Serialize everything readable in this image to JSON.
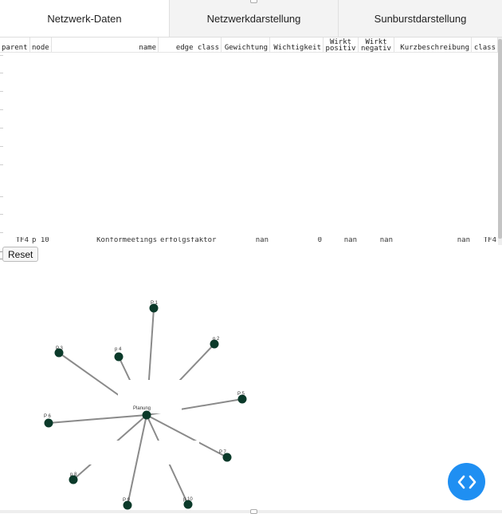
{
  "tabs": [
    {
      "label": "Netzwerk-Daten",
      "active": true
    },
    {
      "label": "Netzwerkdarstellung",
      "active": false
    },
    {
      "label": "Sunburstdarstellung",
      "active": false
    }
  ],
  "table": {
    "columns": [
      {
        "line1": "parent",
        "line2": ""
      },
      {
        "line1": "node",
        "line2": ""
      },
      {
        "line1": "name",
        "line2": ""
      },
      {
        "line1": "edge class",
        "line2": ""
      },
      {
        "line1": "Gewichtung",
        "line2": ""
      },
      {
        "line1": "Wichtigkeit",
        "line2": ""
      },
      {
        "line1": "Wirkt",
        "line2": "positiv"
      },
      {
        "line1": "Wirkt",
        "line2": "negativ"
      },
      {
        "line1": "Kurzbeschreibung",
        "line2": ""
      },
      {
        "line1": "class",
        "line2": ""
      }
    ],
    "peek_row": [
      "TF4",
      "p 10",
      "Konformeetings",
      "erfolgsfaktor",
      "nan",
      "0",
      "nan",
      "nan",
      "nan",
      "TF4"
    ]
  },
  "reset_label": "Reset",
  "graph": {
    "center": {
      "label": "Planung"
    },
    "nodes": [
      {
        "label": "P 1"
      },
      {
        "label": "p 2"
      },
      {
        "label": "P 3"
      },
      {
        "label": "p 4"
      },
      {
        "label": "P 5"
      },
      {
        "label": "P 6"
      },
      {
        "label": "P 7"
      },
      {
        "label": "p 8"
      },
      {
        "label": "P 9"
      },
      {
        "label": "p 10"
      }
    ],
    "colors": {
      "node": "#0b3a2a",
      "edge": "#8a8a8a"
    }
  },
  "fab_icon": "code-icon",
  "accent": "#1f8ff2"
}
